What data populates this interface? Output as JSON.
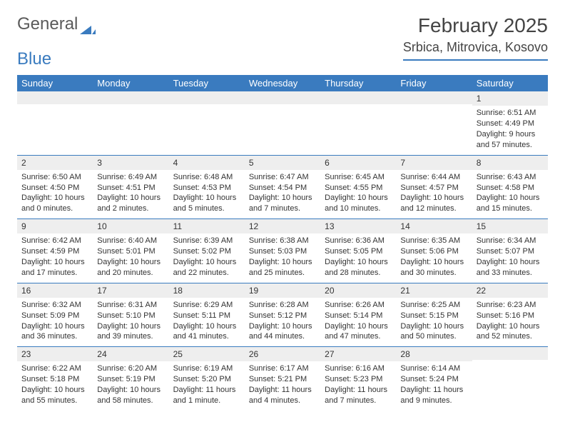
{
  "logo": {
    "word1": "General",
    "word2": "Blue"
  },
  "colors": {
    "accent": "#3a7bbf",
    "daynum_bg": "#eeeeee",
    "text": "#333333",
    "bg": "#ffffff"
  },
  "title": "February 2025",
  "location": "Srbica, Mitrovica, Kosovo",
  "daynames": [
    "Sunday",
    "Monday",
    "Tuesday",
    "Wednesday",
    "Thursday",
    "Friday",
    "Saturday"
  ],
  "weeks": [
    [
      null,
      null,
      null,
      null,
      null,
      null,
      {
        "n": "1",
        "sunrise": "Sunrise: 6:51 AM",
        "sunset": "Sunset: 4:49 PM",
        "daylight": "Daylight: 9 hours and 57 minutes."
      }
    ],
    [
      {
        "n": "2",
        "sunrise": "Sunrise: 6:50 AM",
        "sunset": "Sunset: 4:50 PM",
        "daylight": "Daylight: 10 hours and 0 minutes."
      },
      {
        "n": "3",
        "sunrise": "Sunrise: 6:49 AM",
        "sunset": "Sunset: 4:51 PM",
        "daylight": "Daylight: 10 hours and 2 minutes."
      },
      {
        "n": "4",
        "sunrise": "Sunrise: 6:48 AM",
        "sunset": "Sunset: 4:53 PM",
        "daylight": "Daylight: 10 hours and 5 minutes."
      },
      {
        "n": "5",
        "sunrise": "Sunrise: 6:47 AM",
        "sunset": "Sunset: 4:54 PM",
        "daylight": "Daylight: 10 hours and 7 minutes."
      },
      {
        "n": "6",
        "sunrise": "Sunrise: 6:45 AM",
        "sunset": "Sunset: 4:55 PM",
        "daylight": "Daylight: 10 hours and 10 minutes."
      },
      {
        "n": "7",
        "sunrise": "Sunrise: 6:44 AM",
        "sunset": "Sunset: 4:57 PM",
        "daylight": "Daylight: 10 hours and 12 minutes."
      },
      {
        "n": "8",
        "sunrise": "Sunrise: 6:43 AM",
        "sunset": "Sunset: 4:58 PM",
        "daylight": "Daylight: 10 hours and 15 minutes."
      }
    ],
    [
      {
        "n": "9",
        "sunrise": "Sunrise: 6:42 AM",
        "sunset": "Sunset: 4:59 PM",
        "daylight": "Daylight: 10 hours and 17 minutes."
      },
      {
        "n": "10",
        "sunrise": "Sunrise: 6:40 AM",
        "sunset": "Sunset: 5:01 PM",
        "daylight": "Daylight: 10 hours and 20 minutes."
      },
      {
        "n": "11",
        "sunrise": "Sunrise: 6:39 AM",
        "sunset": "Sunset: 5:02 PM",
        "daylight": "Daylight: 10 hours and 22 minutes."
      },
      {
        "n": "12",
        "sunrise": "Sunrise: 6:38 AM",
        "sunset": "Sunset: 5:03 PM",
        "daylight": "Daylight: 10 hours and 25 minutes."
      },
      {
        "n": "13",
        "sunrise": "Sunrise: 6:36 AM",
        "sunset": "Sunset: 5:05 PM",
        "daylight": "Daylight: 10 hours and 28 minutes."
      },
      {
        "n": "14",
        "sunrise": "Sunrise: 6:35 AM",
        "sunset": "Sunset: 5:06 PM",
        "daylight": "Daylight: 10 hours and 30 minutes."
      },
      {
        "n": "15",
        "sunrise": "Sunrise: 6:34 AM",
        "sunset": "Sunset: 5:07 PM",
        "daylight": "Daylight: 10 hours and 33 minutes."
      }
    ],
    [
      {
        "n": "16",
        "sunrise": "Sunrise: 6:32 AM",
        "sunset": "Sunset: 5:09 PM",
        "daylight": "Daylight: 10 hours and 36 minutes."
      },
      {
        "n": "17",
        "sunrise": "Sunrise: 6:31 AM",
        "sunset": "Sunset: 5:10 PM",
        "daylight": "Daylight: 10 hours and 39 minutes."
      },
      {
        "n": "18",
        "sunrise": "Sunrise: 6:29 AM",
        "sunset": "Sunset: 5:11 PM",
        "daylight": "Daylight: 10 hours and 41 minutes."
      },
      {
        "n": "19",
        "sunrise": "Sunrise: 6:28 AM",
        "sunset": "Sunset: 5:12 PM",
        "daylight": "Daylight: 10 hours and 44 minutes."
      },
      {
        "n": "20",
        "sunrise": "Sunrise: 6:26 AM",
        "sunset": "Sunset: 5:14 PM",
        "daylight": "Daylight: 10 hours and 47 minutes."
      },
      {
        "n": "21",
        "sunrise": "Sunrise: 6:25 AM",
        "sunset": "Sunset: 5:15 PM",
        "daylight": "Daylight: 10 hours and 50 minutes."
      },
      {
        "n": "22",
        "sunrise": "Sunrise: 6:23 AM",
        "sunset": "Sunset: 5:16 PM",
        "daylight": "Daylight: 10 hours and 52 minutes."
      }
    ],
    [
      {
        "n": "23",
        "sunrise": "Sunrise: 6:22 AM",
        "sunset": "Sunset: 5:18 PM",
        "daylight": "Daylight: 10 hours and 55 minutes."
      },
      {
        "n": "24",
        "sunrise": "Sunrise: 6:20 AM",
        "sunset": "Sunset: 5:19 PM",
        "daylight": "Daylight: 10 hours and 58 minutes."
      },
      {
        "n": "25",
        "sunrise": "Sunrise: 6:19 AM",
        "sunset": "Sunset: 5:20 PM",
        "daylight": "Daylight: 11 hours and 1 minute."
      },
      {
        "n": "26",
        "sunrise": "Sunrise: 6:17 AM",
        "sunset": "Sunset: 5:21 PM",
        "daylight": "Daylight: 11 hours and 4 minutes."
      },
      {
        "n": "27",
        "sunrise": "Sunrise: 6:16 AM",
        "sunset": "Sunset: 5:23 PM",
        "daylight": "Daylight: 11 hours and 7 minutes."
      },
      {
        "n": "28",
        "sunrise": "Sunrise: 6:14 AM",
        "sunset": "Sunset: 5:24 PM",
        "daylight": "Daylight: 11 hours and 9 minutes."
      },
      null
    ]
  ]
}
